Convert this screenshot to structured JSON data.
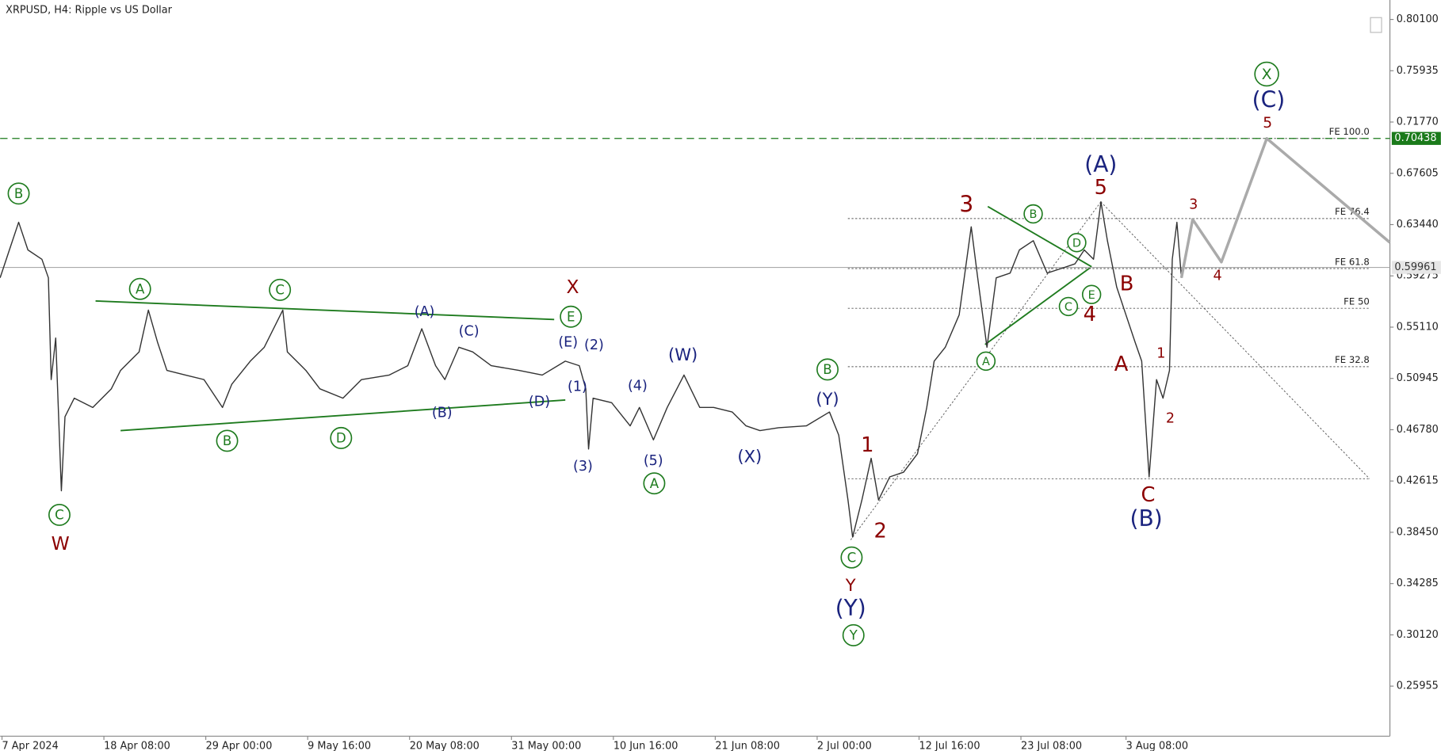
{
  "chart_data": {
    "type": "line",
    "title": "XRPUSD, H4:  Ripple vs US Dollar",
    "xlim": [
      0.47,
      145.96
    ],
    "ylim": [
      0.2189,
      0.8168
    ],
    "xticks": [
      {
        "value": 0.667,
        "label": "7 Apr 2024"
      },
      {
        "value": 11.333,
        "label": "18 Apr 08:00"
      },
      {
        "value": 22,
        "label": "29 Apr 00:00"
      },
      {
        "value": 32.667,
        "label": "9 May 16:00"
      },
      {
        "value": 43.333,
        "label": "20 May 08:00"
      },
      {
        "value": 54,
        "label": "31 May 00:00"
      },
      {
        "value": 64.667,
        "label": "10 Jun 16:00"
      },
      {
        "value": 75.333,
        "label": "21 Jun 08:00"
      },
      {
        "value": 86,
        "label": "2 Jul 00:00"
      },
      {
        "value": 96.667,
        "label": "12 Jul 16:00"
      },
      {
        "value": 107.333,
        "label": "23 Jul 08:00"
      },
      {
        "value": 118.333,
        "label": "3 Aug 08:00"
      }
    ],
    "yticks": [
      {
        "value": 0.801,
        "label": "0.80100"
      },
      {
        "value": 0.75935,
        "label": "0.75935"
      },
      {
        "value": 0.7177,
        "label": "0.71770"
      },
      {
        "value": 0.67605,
        "label": "0.67605"
      },
      {
        "value": 0.6344,
        "label": "0.63440"
      },
      {
        "value": 0.59275,
        "label": "0.59275"
      },
      {
        "value": 0.5511,
        "label": "0.55110"
      },
      {
        "value": 0.50945,
        "label": "0.50945"
      },
      {
        "value": 0.4678,
        "label": "0.46780"
      },
      {
        "value": 0.42615,
        "label": "0.42615"
      },
      {
        "value": 0.3845,
        "label": "0.38450"
      },
      {
        "value": 0.34285,
        "label": "0.34285"
      },
      {
        "value": 0.3012,
        "label": "0.30120"
      },
      {
        "value": 0.25955,
        "label": "0.25955"
      }
    ],
    "series": [
      {
        "color": "#333333",
        "x": [
          0.47,
          1.44,
          2.41,
          3.38,
          4.84,
          5.52,
          5.81,
          6.29,
          6.88,
          7.26,
          8.23,
          10.17,
          12.11,
          13.08,
          14.05,
          15.02,
          15.99,
          16.96,
          17.93,
          19.87,
          21.81,
          23.75,
          24.72,
          26.66,
          28.12,
          30.06,
          30.54,
          32.48,
          33.94,
          36.36,
          38.3,
          41.21,
          43.15,
          44.61,
          46.06,
          47.03,
          48.49,
          49.94,
          51.88,
          54.79,
          57.22,
          59.64,
          61.1,
          61.78,
          62.07,
          62.55,
          64.49,
          66.43,
          67.4,
          68.86,
          70.31,
          72.06,
          73.71,
          75.16,
          77.1,
          78.56,
          80.01,
          81.95,
          84.86,
          87.29,
          88.26,
          89.23,
          89.71,
          90.68,
          91.65,
          92.43,
          93.59,
          95.05,
          96.5,
          97.47,
          98.25,
          99.41,
          100.87,
          102.13,
          102.81,
          103.78,
          104.75,
          106.2,
          107.17,
          108.63,
          110.08,
          111.54,
          112.99,
          113.96,
          114.93,
          115.71,
          116.39,
          117.36,
          118.33,
          119.3,
          119.98,
          120.75,
          121.53,
          122.21,
          122.89,
          123.18,
          123.66,
          124.14
        ],
        "values": [
          0.5912,
          0.6138,
          0.6363,
          0.6138,
          0.6062,
          0.5912,
          0.5085,
          0.5423,
          0.4182,
          0.4784,
          0.4934,
          0.4859,
          0.501,
          0.516,
          0.5235,
          0.531,
          0.5649,
          0.5386,
          0.516,
          0.5122,
          0.5085,
          0.4859,
          0.5047,
          0.5235,
          0.5348,
          0.5649,
          0.531,
          0.516,
          0.501,
          0.4934,
          0.5085,
          0.5122,
          0.5198,
          0.5498,
          0.5198,
          0.5085,
          0.5348,
          0.531,
          0.5198,
          0.516,
          0.5122,
          0.5235,
          0.5198,
          0.501,
          0.4521,
          0.4934,
          0.4897,
          0.4709,
          0.4859,
          0.4596,
          0.4859,
          0.5122,
          0.4859,
          0.4859,
          0.4822,
          0.4709,
          0.4671,
          0.4694,
          0.4709,
          0.4822,
          0.4634,
          0.4107,
          0.3806,
          0.4107,
          0.4446,
          0.4107,
          0.4295,
          0.4333,
          0.4483,
          0.4859,
          0.5235,
          0.5348,
          0.5611,
          0.6326,
          0.5912,
          0.5348,
          0.5912,
          0.595,
          0.6138,
          0.6213,
          0.595,
          0.5987,
          0.6025,
          0.6138,
          0.6062,
          0.6529,
          0.6213,
          0.5837,
          0.5611,
          0.5386,
          0.5235,
          0.4295,
          0.5085,
          0.4934,
          0.516,
          0.6062,
          0.6363,
          0.5912
        ]
      },
      {
        "color": "#aaaaaa",
        "x": [
          124.14,
          125.31,
          128.32,
          133.07,
          145.96
        ],
        "values": [
          0.5912,
          0.6386,
          0.604,
          0.7044,
          0.6198
        ]
      }
    ],
    "levels": [
      {
        "label": "FE 100.0",
        "value": 0.70438
      },
      {
        "label": "FE 76.4",
        "value": 0.6393
      },
      {
        "label": "FE 61.8",
        "value": 0.5987
      },
      {
        "label": "FE 50",
        "value": 0.5664
      },
      {
        "label": "FE 32.8",
        "value": 0.519
      },
      {
        "value": 0.428
      }
    ],
    "price_labels": [
      {
        "value": 0.70438,
        "label": "0.70438",
        "color": "#1a7a1a",
        "dashed": true
      },
      {
        "value": 0.59961,
        "label": "0.59961",
        "color": "#aaaaaa",
        "dashed": false
      }
    ],
    "annotations": [
      {
        "text": "B",
        "color": "#1e7b1e",
        "circled": true
      },
      {
        "text": "C",
        "color": "#1e7b1e",
        "circled": true
      },
      {
        "text": "A",
        "color": "#1e7b1e",
        "circled": true
      },
      {
        "text": "C",
        "color": "#1e7b1e",
        "circled": true
      },
      {
        "text": "E",
        "color": "#1e7b1e",
        "circled": true
      },
      {
        "text": "B",
        "color": "#1e7b1e",
        "circled": true
      },
      {
        "text": "D",
        "color": "#1e7b1e",
        "circled": true
      },
      {
        "text": "A",
        "color": "#1e7b1e",
        "circled": true
      },
      {
        "text": "B",
        "color": "#1e7b1e",
        "circled": true
      },
      {
        "text": "C",
        "color": "#1e7b1e",
        "circled": true
      },
      {
        "text": "Y",
        "color": "#1e7b1e",
        "circled": true
      },
      {
        "text": "A",
        "color": "#1e7b1e",
        "circled": true
      },
      {
        "text": "B",
        "color": "#1e7b1e",
        "circled": true
      },
      {
        "text": "D",
        "color": "#1e7b1e",
        "circled": true
      },
      {
        "text": "C",
        "color": "#1e7b1e",
        "circled": true
      },
      {
        "text": "E",
        "color": "#1e7b1e",
        "circled": true
      },
      {
        "text": "X",
        "color": "#1e7b1e",
        "circled": true
      },
      {
        "text": "W",
        "color": "#8b0000"
      },
      {
        "text": "X",
        "color": "#8b0000"
      },
      {
        "text": "Y",
        "color": "#8b0000"
      },
      {
        "text": "1",
        "color": "#8b0000"
      },
      {
        "text": "2",
        "color": "#8b0000"
      },
      {
        "text": "3",
        "color": "#8b0000"
      },
      {
        "text": "4",
        "color": "#8b0000"
      },
      {
        "text": "5",
        "color": "#8b0000"
      },
      {
        "text": "B",
        "color": "#8b0000"
      },
      {
        "text": "A",
        "color": "#8b0000"
      },
      {
        "text": "C",
        "color": "#8b0000"
      },
      {
        "text": "1",
        "color": "#8b0000"
      },
      {
        "text": "2",
        "color": "#8b0000"
      },
      {
        "text": "3",
        "color": "#8b0000"
      },
      {
        "text": "4",
        "color": "#8b0000"
      },
      {
        "text": "5",
        "color": "#8b0000"
      },
      {
        "text": "(A)",
        "color": "#1a237e"
      },
      {
        "text": "(C)",
        "color": "#1a237e"
      },
      {
        "text": "(E)",
        "color": "#1a237e"
      },
      {
        "text": "(2)",
        "color": "#1a237e"
      },
      {
        "text": "(1)",
        "color": "#1a237e"
      },
      {
        "text": "(B)",
        "color": "#1a237e"
      },
      {
        "text": "(D)",
        "color": "#1a237e"
      },
      {
        "text": "(3)",
        "color": "#1a237e"
      },
      {
        "text": "(4)",
        "color": "#1a237e"
      },
      {
        "text": "(5)",
        "color": "#1a237e"
      },
      {
        "text": "(W)",
        "color": "#1a237e"
      },
      {
        "text": "(X)",
        "color": "#1a237e"
      },
      {
        "text": "(Y)",
        "color": "#1a237e"
      },
      {
        "text": "(Y)",
        "color": "#1a237e"
      },
      {
        "text": "(A)",
        "color": "#1a237e"
      },
      {
        "text": "(B)",
        "color": "#1a237e"
      },
      {
        "text": "(C)",
        "color": "#1a237e"
      }
    ]
  }
}
